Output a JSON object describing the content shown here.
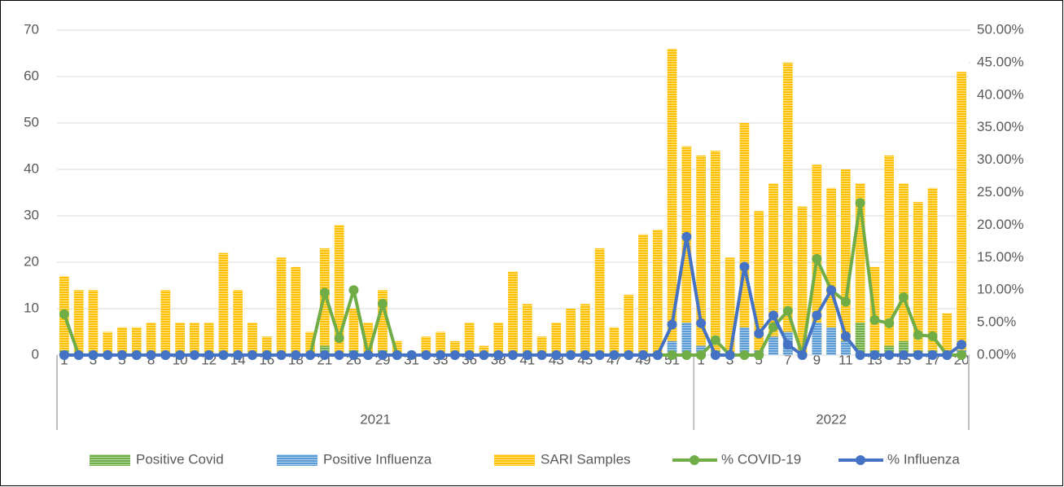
{
  "chart_data": {
    "type": "combo",
    "groups": [
      {
        "name": "2021",
        "categories": [
          "1",
          null,
          "3",
          null,
          "5",
          null,
          "8",
          null,
          "10",
          null,
          "12",
          null,
          "14",
          null,
          "16",
          null,
          "18",
          null,
          "21",
          null,
          "26",
          null,
          "29",
          null,
          "31",
          null,
          "33",
          null,
          "36",
          null,
          "38",
          null,
          "41",
          null,
          "43",
          null,
          "45",
          null,
          "47",
          null,
          "49",
          null,
          "51",
          null
        ]
      },
      {
        "name": "2022",
        "categories": [
          "1",
          null,
          "3",
          null,
          "5",
          null,
          "7",
          null,
          "9",
          null,
          "11",
          null,
          "13",
          null,
          "15",
          null,
          "17",
          null,
          "20"
        ]
      }
    ],
    "series": [
      {
        "name": "SARI Samples",
        "type": "bar",
        "axis": "y",
        "color": "#ffc000",
        "values": [
          17,
          14,
          14,
          5,
          6,
          6,
          7,
          14,
          7,
          7,
          7,
          22,
          14,
          7,
          4,
          21,
          19,
          5,
          23,
          28,
          10,
          7,
          14,
          3,
          0,
          4,
          5,
          3,
          7,
          2,
          7,
          18,
          11,
          4,
          7,
          10,
          11,
          23,
          6,
          13,
          26,
          27,
          66,
          45,
          43,
          44,
          21,
          50,
          31,
          37,
          63,
          32,
          41,
          36,
          40,
          37,
          19,
          43,
          37,
          33,
          36,
          9,
          61
        ]
      },
      {
        "name": "Positive Covid",
        "type": "bar",
        "axis": "y",
        "color": "#70ad47",
        "values": [
          1,
          0,
          0,
          0,
          0,
          0,
          0,
          0,
          0,
          0,
          0,
          0,
          0,
          0,
          0,
          0,
          0,
          0,
          2,
          0,
          1,
          0,
          1,
          0,
          0,
          0,
          0,
          0,
          0,
          0,
          0,
          0,
          0,
          0,
          0,
          0,
          0,
          0,
          0,
          0,
          0,
          0,
          0,
          0,
          0,
          1,
          0,
          0,
          0,
          2,
          4,
          0,
          6,
          4,
          3,
          7,
          1,
          2,
          3,
          1,
          1,
          0,
          0
        ]
      },
      {
        "name": "Positive Influenza",
        "type": "bar",
        "axis": "y",
        "color": "#5b9bd5",
        "values": [
          0,
          0,
          0,
          0,
          0,
          0,
          0,
          0,
          0,
          0,
          0,
          0,
          0,
          0,
          0,
          0,
          0,
          0,
          0,
          0,
          0,
          0,
          0,
          0,
          0,
          0,
          0,
          0,
          0,
          0,
          0,
          0,
          0,
          0,
          0,
          0,
          0,
          0,
          0,
          0,
          0,
          0,
          3,
          7,
          2,
          0,
          0,
          6,
          1,
          4,
          5,
          0,
          7,
          6,
          3,
          0,
          0,
          0,
          0,
          0,
          0,
          0,
          1
        ]
      },
      {
        "name": "% COVID-19",
        "type": "line",
        "axis": "y2",
        "color": "#70ad47",
        "values": [
          6.3,
          0,
          0,
          0,
          0,
          0,
          0,
          0,
          0,
          0,
          0,
          0,
          0,
          0,
          0,
          0,
          0,
          0,
          9.6,
          2.6,
          10,
          0,
          7.9,
          0,
          0,
          0,
          0,
          0,
          0,
          0,
          0,
          0,
          0,
          0,
          0,
          0,
          0,
          0,
          0,
          0,
          0,
          0,
          0,
          0,
          0,
          2.3,
          0,
          0,
          0,
          4.3,
          6.8,
          0,
          14.8,
          10,
          8.2,
          23.4,
          5.4,
          4.9,
          8.9,
          3.1,
          2.9,
          0,
          0
        ]
      },
      {
        "name": "% Influenza",
        "type": "line",
        "axis": "y2",
        "color": "#4472c4",
        "values": [
          0,
          0,
          0,
          0,
          0,
          0,
          0,
          0,
          0,
          0,
          0,
          0,
          0,
          0,
          0,
          0,
          0,
          0,
          0,
          0,
          0,
          0,
          0,
          0,
          0,
          0,
          0,
          0,
          0,
          0,
          0,
          0,
          0,
          0,
          0,
          0,
          0,
          0,
          0,
          0,
          0,
          0,
          4.7,
          18.2,
          4.9,
          0,
          0,
          13.6,
          3.3,
          6.1,
          1.6,
          0,
          6.1,
          10,
          2.9,
          0,
          0,
          0,
          0,
          0,
          0,
          0,
          1.6
        ]
      }
    ],
    "ylim": [
      0,
      70
    ],
    "yticks": [
      0,
      10,
      20,
      30,
      40,
      50,
      60,
      70
    ],
    "y2lim": [
      0,
      50
    ],
    "y2ticks": [
      {
        "value": 0,
        "label": "0.00%"
      },
      {
        "value": 5,
        "label": "5.00%"
      },
      {
        "value": 10,
        "label": "10.00%"
      },
      {
        "value": 15,
        "label": "15.00%"
      },
      {
        "value": 20,
        "label": "20.00%"
      },
      {
        "value": 25,
        "label": "25.00%"
      },
      {
        "value": 30,
        "label": "30.00%"
      },
      {
        "value": 35,
        "label": "35.00%"
      },
      {
        "value": 40,
        "label": "40.00%"
      },
      {
        "value": 45,
        "label": "45.00%"
      },
      {
        "value": 50,
        "label": "50.00%"
      }
    ],
    "grid": true,
    "legend": "bottom"
  }
}
